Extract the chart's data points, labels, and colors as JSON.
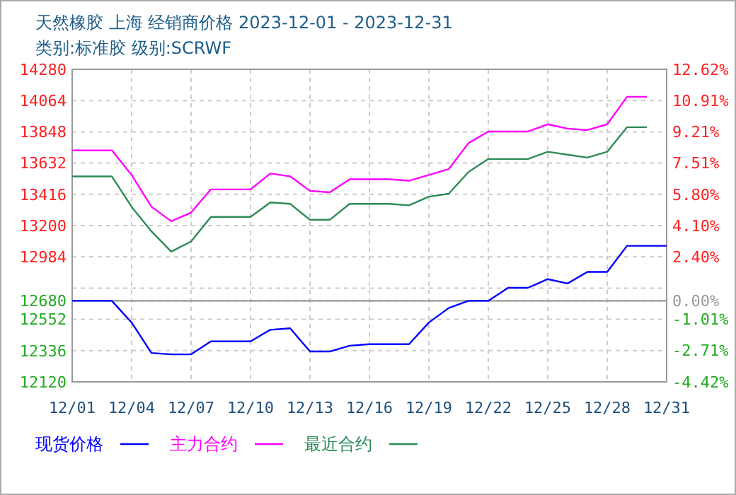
{
  "chart_data": {
    "type": "line",
    "title": "天然橡胶 上海 经销商价格 2023-12-01 - 2023-12-31",
    "subtitle": "类别:标准胶 级别:SCRWF",
    "x": [
      "2023-12-01",
      "2023-12-02",
      "2023-12-03",
      "2023-12-04",
      "2023-12-05",
      "2023-12-06",
      "2023-12-07",
      "2023-12-08",
      "2023-12-09",
      "2023-12-10",
      "2023-12-11",
      "2023-12-12",
      "2023-12-13",
      "2023-12-14",
      "2023-12-15",
      "2023-12-16",
      "2023-12-17",
      "2023-12-18",
      "2023-12-19",
      "2023-12-20",
      "2023-12-21",
      "2023-12-22",
      "2023-12-23",
      "2023-12-24",
      "2023-12-25",
      "2023-12-26",
      "2023-12-27",
      "2023-12-28",
      "2023-12-29",
      "2023-12-30",
      "2023-12-31"
    ],
    "series": [
      {
        "name": "现货价格",
        "color": "#0000ff",
        "values": [
          12680,
          12680,
          12680,
          12530,
          12320,
          12310,
          12310,
          12400,
          12400,
          12400,
          12480,
          12490,
          12330,
          12330,
          12370,
          12380,
          12380,
          12380,
          12530,
          12630,
          12680,
          12680,
          12770,
          12770,
          12830,
          12800,
          12880,
          12880,
          13060,
          13060,
          13060
        ]
      },
      {
        "name": "主力合约",
        "color": "#ff00ff",
        "values": [
          13720,
          13720,
          13720,
          13550,
          13330,
          13230,
          13290,
          13450,
          13450,
          13450,
          13560,
          13540,
          13440,
          13430,
          13520,
          13520,
          13520,
          13510,
          13550,
          13590,
          13770,
          13850,
          13850,
          13850,
          13900,
          13870,
          13860,
          13900,
          14090,
          14090,
          null
        ]
      },
      {
        "name": "最近合约",
        "color": "#2e8b57",
        "values": [
          13540,
          13540,
          13540,
          13330,
          13160,
          13020,
          13090,
          13260,
          13260,
          13260,
          13360,
          13350,
          13240,
          13240,
          13350,
          13350,
          13350,
          13340,
          13400,
          13420,
          13570,
          13660,
          13660,
          13660,
          13710,
          13690,
          13670,
          13710,
          13880,
          13880,
          null
        ]
      }
    ],
    "xlim": [
      "2023-12-01",
      "2023-12-31"
    ],
    "xticks": [
      {
        "value": "2023-12-01",
        "label": "12/01"
      },
      {
        "value": "2023-12-04",
        "label": "12/04"
      },
      {
        "value": "2023-12-07",
        "label": "12/07"
      },
      {
        "value": "2023-12-10",
        "label": "12/10"
      },
      {
        "value": "2023-12-13",
        "label": "12/13"
      },
      {
        "value": "2023-12-16",
        "label": "12/16"
      },
      {
        "value": "2023-12-19",
        "label": "12/19"
      },
      {
        "value": "2023-12-22",
        "label": "12/22"
      },
      {
        "value": "2023-12-25",
        "label": "12/25"
      },
      {
        "value": "2023-12-28",
        "label": "12/28"
      },
      {
        "value": "2023-12-31",
        "label": "12/31"
      }
    ],
    "ylim": [
      12120,
      14280
    ],
    "yticks": [
      14280,
      14064,
      13848,
      13632,
      13416,
      13200,
      12984,
      {
        "value": 12768,
        "label": null
      },
      12680,
      12552,
      12336,
      12120
    ],
    "y2lim": [
      -4.42,
      12.62
    ],
    "y2ticks": [
      {
        "value": 12.62,
        "label": "12.62%"
      },
      {
        "value": 10.91,
        "label": "10.91%"
      },
      {
        "value": 9.21,
        "label": "9.21%"
      },
      {
        "value": 7.51,
        "label": "7.51%"
      },
      {
        "value": 5.8,
        "label": "5.80%"
      },
      {
        "value": 4.1,
        "label": "4.10%"
      },
      {
        "value": 2.4,
        "label": "2.40%"
      },
      {
        "value": 0,
        "label": "0.00%"
      },
      {
        "value": -1.01,
        "label": "-1.01%"
      },
      {
        "value": -2.71,
        "label": "-2.71%"
      },
      {
        "value": -4.42,
        "label": "-4.42%"
      }
    ],
    "ref_lines": [
      {
        "axis": "y",
        "value": 12680,
        "color": "#999999"
      }
    ],
    "grid": true,
    "legend": "bottom",
    "line_style": "solid",
    "marker": "none"
  }
}
